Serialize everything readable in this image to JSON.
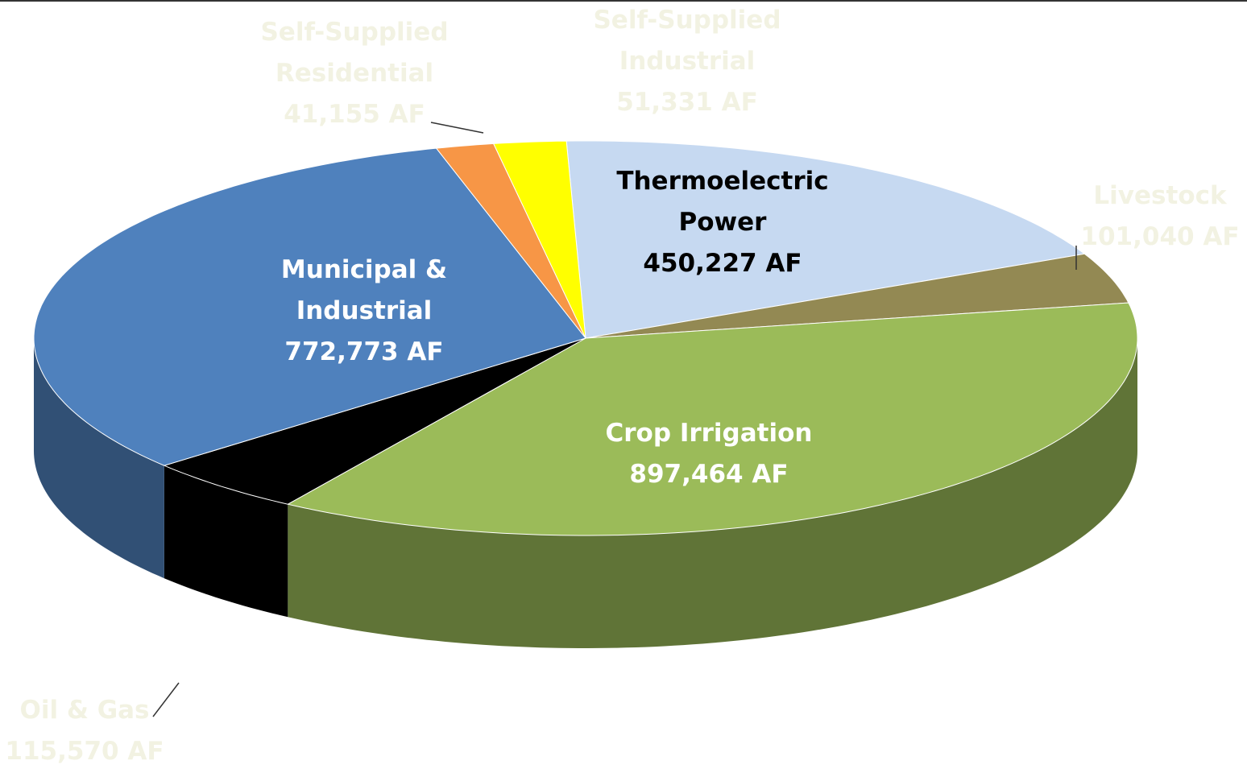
{
  "chart_data": {
    "type": "pie3d",
    "categories": [
      "Thermoelectric Power",
      "Livestock",
      "Crop Irrigation",
      "Oil & Gas",
      "Municipal & Industrial",
      "Self-Supplied Residential",
      "Self-Supplied Industrial"
    ],
    "values": [
      450227,
      101040,
      897464,
      115570,
      772773,
      41155,
      51331
    ],
    "value_labels": [
      "450,227 AF",
      "101,040 AF",
      "897,464 AF",
      "115,570 AF",
      "772,773 AF",
      "41,155 AF",
      "51,331 AF"
    ],
    "colors": [
      "#c6d9f1",
      "#938953",
      "#9bbb59",
      "#000000",
      "#4f81bd",
      "#f79646",
      "#ffff00"
    ]
  }
}
